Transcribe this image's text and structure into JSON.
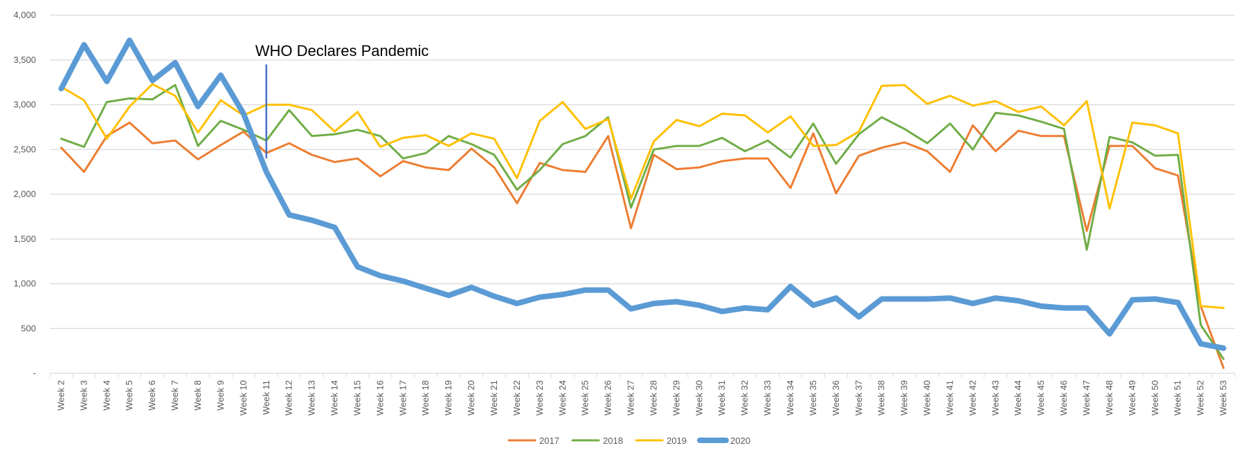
{
  "chart_data": {
    "type": "line",
    "categories": [
      "Week 2",
      "Week 3",
      "Week 4",
      "Week 5",
      "Week 6",
      "Week 7",
      "Week 8",
      "Week 9",
      "Week 10",
      "Week 11",
      "Week 12",
      "Week 13",
      "Week 14",
      "Week 15",
      "Week 16",
      "Week 17",
      "Week 18",
      "Week 19",
      "Week 20",
      "Week 21",
      "Week 22",
      "Week 23",
      "Week 24",
      "Week 25",
      "Week 26",
      "Week 27",
      "Week 28",
      "Week 29",
      "Week 30",
      "Week 31",
      "Week 32",
      "Week 33",
      "Week 34",
      "Week 35",
      "Week 36",
      "Week 37",
      "Week 38",
      "Week 39",
      "Week 40",
      "Week 41",
      "Week 42",
      "Week 43",
      "Week 44",
      "Week 45",
      "Week 46",
      "Week 47",
      "Week 48",
      "Week 49",
      "Week 50",
      "Week 51",
      "Week 52",
      "Week 53"
    ],
    "ylim": [
      0,
      4000
    ],
    "yticks": [
      0,
      500,
      1000,
      1500,
      2000,
      2500,
      3000,
      3500,
      4000
    ],
    "ytick_labels": [
      "-",
      "500",
      "1,000",
      "1,500",
      "2,000",
      "2,500",
      "3,000",
      "3,500",
      "4,000"
    ],
    "grid": true,
    "legend_position": "bottom",
    "series": [
      {
        "name": "2017",
        "color": "#ED7D31",
        "values": [
          2520,
          2250,
          2650,
          2800,
          2570,
          2600,
          2390,
          2550,
          2700,
          2460,
          2570,
          2440,
          2360,
          2400,
          2200,
          2370,
          2300,
          2270,
          2510,
          2300,
          1900,
          2350,
          2270,
          2250,
          2650,
          1620,
          2440,
          2280,
          2300,
          2370,
          2400,
          2400,
          2070,
          2680,
          2010,
          2430,
          2520,
          2580,
          2480,
          2250,
          2770,
          2480,
          2710,
          2650,
          2650,
          1590,
          2540,
          2540,
          2290,
          2210,
          750,
          60
        ]
      },
      {
        "name": "2018",
        "color": "#70AD47",
        "values": [
          2620,
          2530,
          3030,
          3070,
          3060,
          3220,
          2540,
          2820,
          2720,
          2600,
          2940,
          2650,
          2670,
          2720,
          2650,
          2400,
          2460,
          2650,
          2560,
          2440,
          2050,
          2270,
          2560,
          2650,
          2860,
          1850,
          2500,
          2540,
          2540,
          2630,
          2480,
          2600,
          2410,
          2790,
          2340,
          2670,
          2860,
          2730,
          2570,
          2790,
          2500,
          2910,
          2880,
          2810,
          2730,
          1380,
          2640,
          2580,
          2430,
          2440,
          540,
          160
        ]
      },
      {
        "name": "2019",
        "color": "#FFC000",
        "values": [
          3200,
          3050,
          2620,
          2980,
          3230,
          3100,
          2690,
          3050,
          2880,
          3000,
          3000,
          2940,
          2700,
          2920,
          2530,
          2630,
          2660,
          2540,
          2680,
          2620,
          2180,
          2820,
          3030,
          2730,
          2840,
          1950,
          2590,
          2830,
          2760,
          2900,
          2880,
          2690,
          2870,
          2540,
          2550,
          2700,
          3210,
          3220,
          3010,
          3100,
          2990,
          3040,
          2920,
          2980,
          2770,
          3040,
          1840,
          2800,
          2770,
          2680,
          750,
          730
        ]
      },
      {
        "name": "2020",
        "color": "#5B9BD5",
        "values": [
          3180,
          3670,
          3260,
          3720,
          3270,
          3470,
          2980,
          3330,
          2900,
          2250,
          1770,
          1710,
          1630,
          1190,
          1090,
          1030,
          950,
          870,
          960,
          860,
          780,
          850,
          880,
          930,
          930,
          720,
          780,
          800,
          760,
          690,
          730,
          710,
          970,
          760,
          840,
          630,
          830,
          830,
          830,
          840,
          780,
          840,
          810,
          750,
          730,
          730,
          440,
          820,
          830,
          790,
          330,
          280
        ]
      }
    ],
    "annotations": [
      {
        "text": "WHO Declares Pandemic",
        "category": "Week 11",
        "color": "#4472C4",
        "y_from": 2400,
        "y_to": 3450
      }
    ]
  }
}
